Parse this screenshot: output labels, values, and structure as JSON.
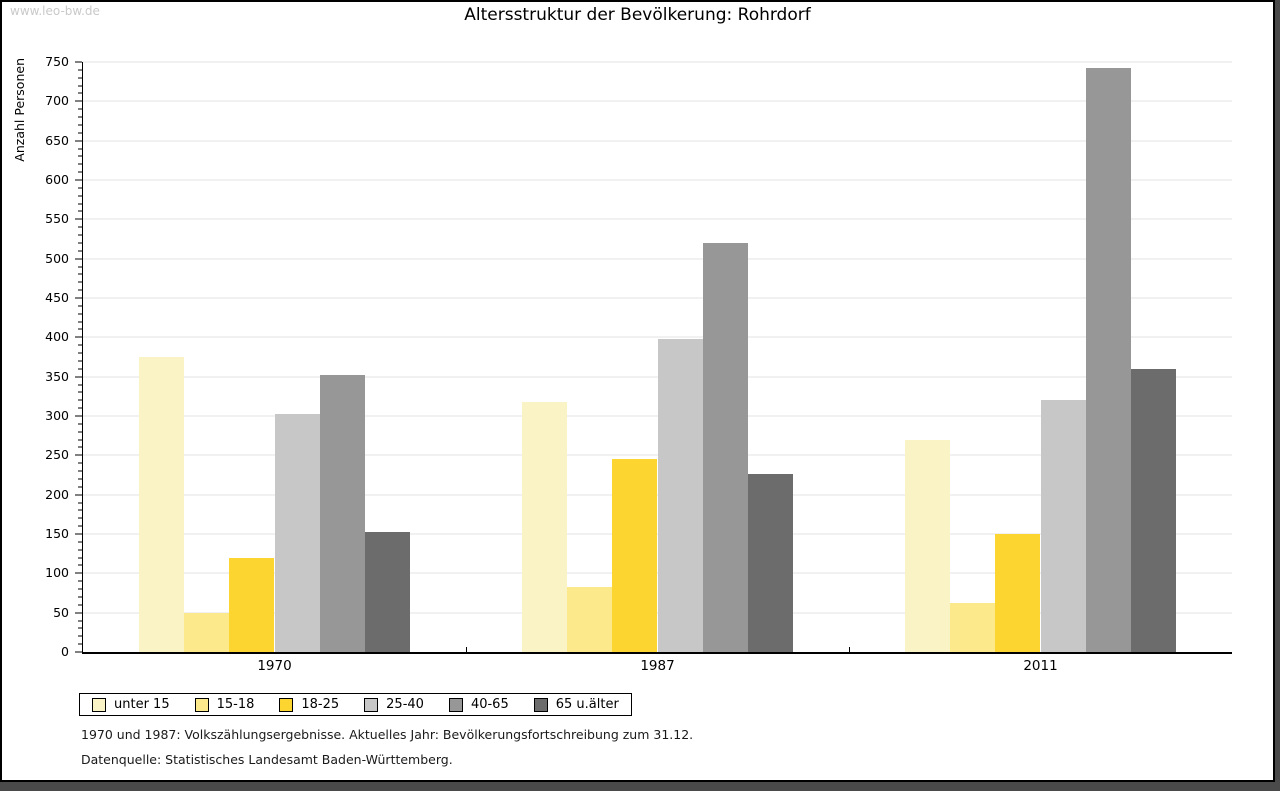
{
  "watermark": "www.leo-bw.de",
  "title": "Altersstruktur der Bevölkerung: Rohrdorf",
  "chart_data": {
    "type": "bar",
    "title": "Altersstruktur der Bevölkerung: Rohrdorf",
    "ylabel": "Anzahl Personen",
    "xlabel": "",
    "categories": [
      "1970",
      "1987",
      "2011"
    ],
    "series": [
      {
        "name": "unter 15",
        "color": "#FAF3C6",
        "values": [
          375,
          318,
          269
        ]
      },
      {
        "name": "15-18",
        "color": "#FBE98B",
        "values": [
          50,
          83,
          62
        ]
      },
      {
        "name": "18-25",
        "color": "#FCD530",
        "values": [
          120,
          245,
          150
        ]
      },
      {
        "name": "25-40",
        "color": "#C7C7C7",
        "values": [
          302,
          398,
          320
        ]
      },
      {
        "name": "40-65",
        "color": "#979797",
        "values": [
          352,
          520,
          742
        ]
      },
      {
        "name": "65 u.älter",
        "color": "#6C6C6C",
        "values": [
          153,
          226,
          360
        ]
      }
    ],
    "ylim": [
      0,
      750
    ],
    "ytick_step": 50,
    "yminor_step": 10,
    "grid": true,
    "legend_position": "bottom-left"
  },
  "footnotes": [
    "1970 und 1987: Volkszählungsergebnisse. Aktuelles Jahr: Bevölkerungsfortschreibung zum 31.12.",
    "Datenquelle: Statistisches Landesamt Baden-Württemberg."
  ]
}
